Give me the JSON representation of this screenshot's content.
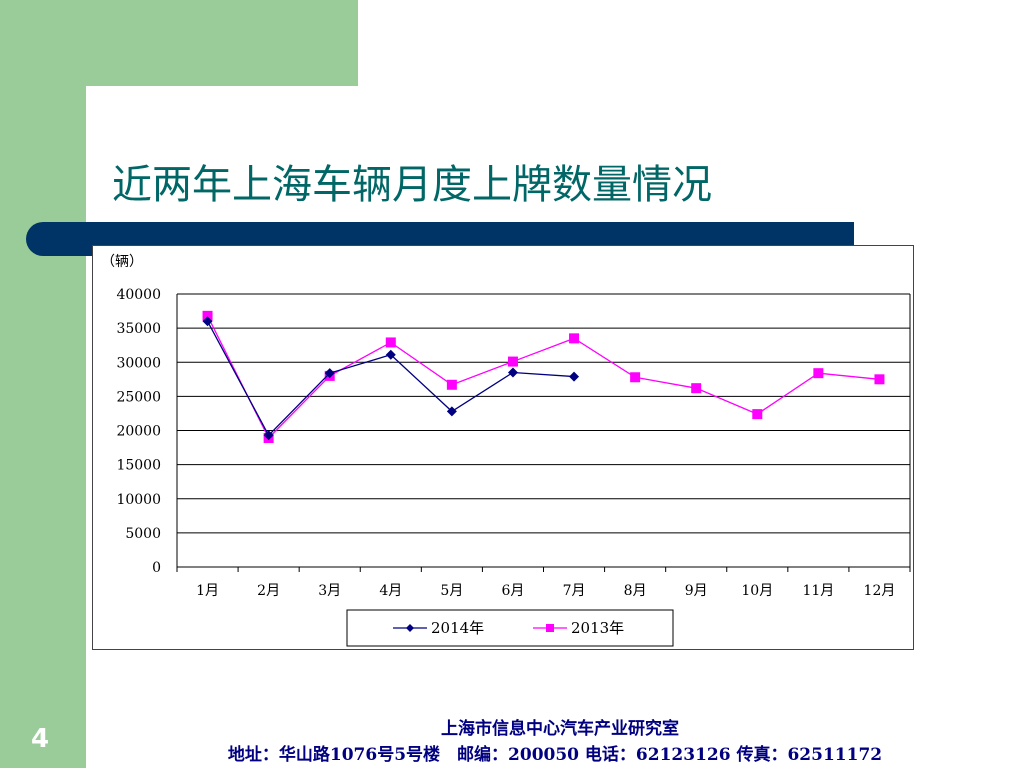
{
  "slide": {
    "title": "近两年上海车辆月度上牌数量情况",
    "page_number": "4"
  },
  "footer": {
    "org": "上海市信息中心汽车产业研究室",
    "contact": "地址：华山路1076号5号楼　邮编：200050  电话：62123126  传真：62511172"
  },
  "colors": {
    "accent_green": "#99cc99",
    "navy_bar": "#003366",
    "title_teal": "#006666",
    "series_2014": "#000080",
    "series_2013": "#ff00ff"
  },
  "chart_data": {
    "type": "line",
    "unit_label": "（辆）",
    "categories": [
      "1月",
      "2月",
      "3月",
      "4月",
      "5月",
      "6月",
      "7月",
      "8月",
      "9月",
      "10月",
      "11月",
      "12月"
    ],
    "ylim": [
      0,
      40000
    ],
    "yticks": [
      0,
      5000,
      10000,
      15000,
      20000,
      25000,
      30000,
      35000,
      40000
    ],
    "grid": true,
    "legend_position": "bottom",
    "series": [
      {
        "name": "2014年",
        "marker": "diamond",
        "color": "#000080",
        "values": [
          36000,
          19300,
          28400,
          31100,
          22800,
          28500,
          27900,
          null,
          null,
          null,
          null,
          null
        ]
      },
      {
        "name": "2013年",
        "marker": "square",
        "color": "#ff00ff",
        "values": [
          36800,
          18900,
          28000,
          32900,
          26700,
          30100,
          33500,
          27800,
          26200,
          22400,
          28400,
          27500
        ]
      }
    ]
  }
}
